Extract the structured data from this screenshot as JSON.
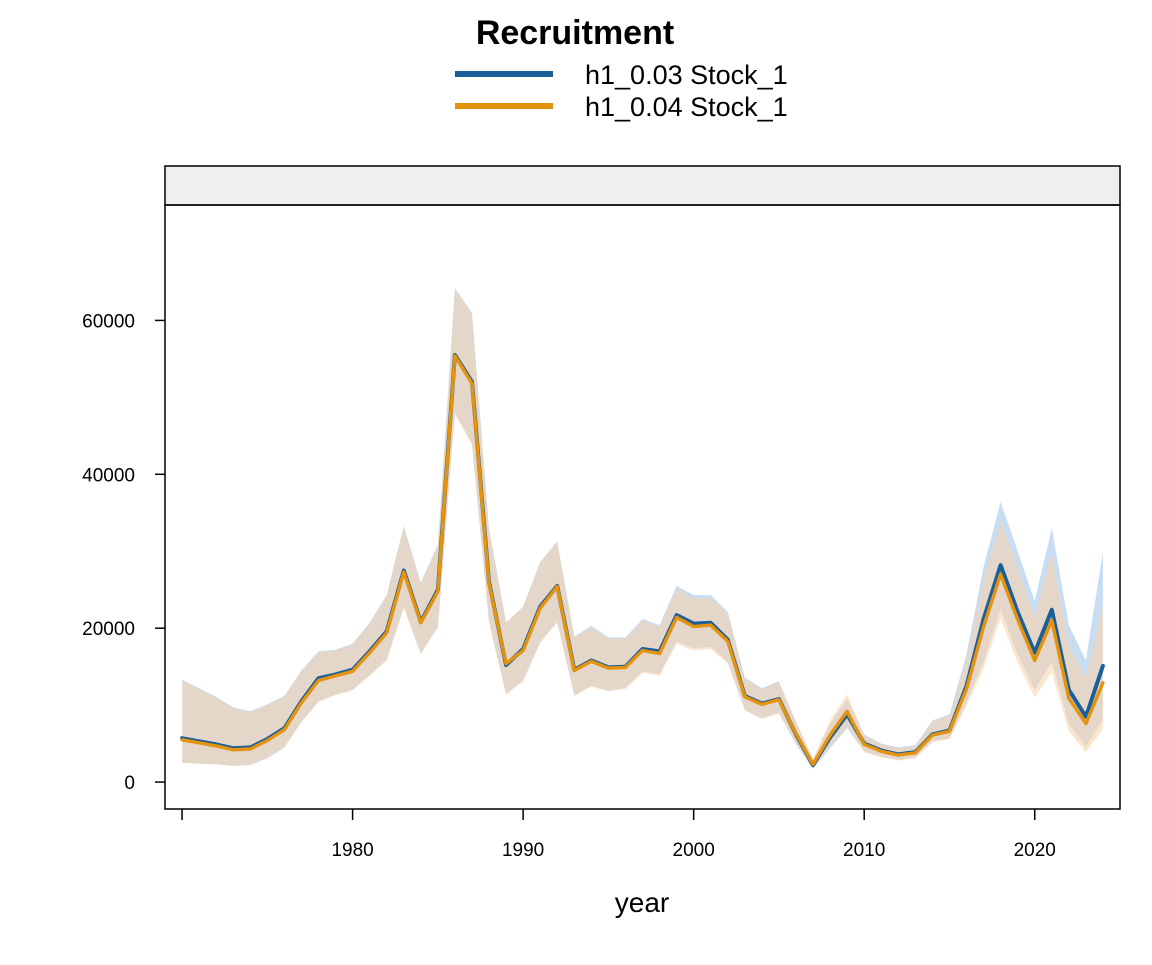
{
  "chart_data": {
    "type": "line",
    "title": "Recruitment",
    "xlabel": "year",
    "ylabel": "",
    "xlim": [
      1969,
      2025
    ],
    "ylim": [
      -3500,
      75000
    ],
    "x_ticks": [
      1980,
      1990,
      2000,
      2010,
      2020
    ],
    "y_ticks": [
      0,
      20000,
      40000,
      60000
    ],
    "x_tick_labels": [
      "1980",
      "1990",
      "2000",
      "2010",
      "2020"
    ],
    "y_tick_labels": [
      "0",
      "20000",
      "40000",
      "60000"
    ],
    "legend_position": "top-center",
    "grid": false,
    "strip_color": "#efefef",
    "x": [
      1970,
      1971,
      1972,
      1973,
      1974,
      1975,
      1976,
      1977,
      1978,
      1979,
      1980,
      1981,
      1982,
      1983,
      1984,
      1985,
      1986,
      1987,
      1988,
      1989,
      1990,
      1991,
      1992,
      1993,
      1994,
      1995,
      1996,
      1997,
      1998,
      1999,
      2000,
      2001,
      2002,
      2003,
      2004,
      2005,
      2006,
      2007,
      2008,
      2009,
      2010,
      2011,
      2012,
      2013,
      2014,
      2015,
      2016,
      2017,
      2018,
      2019,
      2020,
      2021,
      2022,
      2023,
      2024
    ],
    "series": [
      {
        "name": "h1_0.03 Stock_1",
        "color": "#1a5f9a",
        "band_color": "#bcd7f2",
        "values": [
          5700,
          5300,
          4900,
          4400,
          4500,
          5600,
          7000,
          10500,
          13500,
          14000,
          14600,
          17000,
          19600,
          27500,
          20800,
          25000,
          55500,
          52000,
          26000,
          15200,
          17300,
          22800,
          25500,
          14600,
          15800,
          14900,
          15000,
          17300,
          17000,
          21700,
          20600,
          20700,
          18500,
          11200,
          10200,
          10800,
          6200,
          2200,
          5800,
          8800,
          5000,
          4100,
          3600,
          3900,
          6200,
          6700,
          12500,
          21200,
          28200,
          22100,
          16800,
          22400,
          12000,
          8500,
          15100
        ],
        "lower": [
          2500,
          2400,
          2300,
          2100,
          2200,
          3100,
          4500,
          7800,
          10500,
          11400,
          12000,
          13900,
          15900,
          22800,
          16700,
          20200,
          48000,
          44000,
          20800,
          11400,
          13200,
          18200,
          20800,
          11300,
          12500,
          11900,
          12200,
          14400,
          14000,
          18300,
          17400,
          17600,
          15600,
          9400,
          8300,
          9000,
          4900,
          1700,
          4400,
          7000,
          4000,
          3300,
          2900,
          3200,
          5300,
          5700,
          10300,
          15600,
          22500,
          16500,
          12000,
          15600,
          7600,
          4600,
          8200
        ],
        "upper": [
          13300,
          12200,
          11100,
          9700,
          9200,
          10100,
          11200,
          14500,
          17000,
          17200,
          18000,
          20700,
          24300,
          33300,
          25900,
          30900,
          64200,
          61000,
          33000,
          20700,
          22800,
          28600,
          31300,
          18900,
          20300,
          18800,
          18800,
          21200,
          20400,
          25500,
          24300,
          24300,
          22100,
          13600,
          12200,
          13100,
          7800,
          2900,
          7600,
          10800,
          6200,
          5000,
          4500,
          4800,
          8000,
          8800,
          16600,
          28000,
          36400,
          30000,
          23500,
          33000,
          20400,
          15800,
          29900
        ]
      },
      {
        "name": "h1_0.04 Stock_1",
        "color": "#e5920d",
        "band_color": "#f8d3ad",
        "values": [
          5500,
          5100,
          4700,
          4200,
          4300,
          5400,
          6800,
          10300,
          13200,
          13800,
          14400,
          16800,
          19400,
          27300,
          20700,
          24800,
          55400,
          51800,
          25800,
          15400,
          17100,
          22600,
          25400,
          14500,
          15700,
          14800,
          14900,
          17100,
          16700,
          21400,
          20200,
          20400,
          18300,
          11100,
          10100,
          10700,
          6300,
          2300,
          6100,
          9200,
          4900,
          4000,
          3500,
          3800,
          6100,
          6600,
          12100,
          20200,
          27000,
          21100,
          15800,
          21000,
          10900,
          7600,
          12900
        ],
        "lower": [
          2500,
          2400,
          2300,
          2100,
          2200,
          3100,
          4500,
          7800,
          10400,
          11300,
          11900,
          13800,
          15800,
          22600,
          16600,
          20100,
          47800,
          43800,
          20700,
          11400,
          13100,
          18100,
          20700,
          11200,
          12400,
          11800,
          12100,
          14200,
          13800,
          18000,
          17100,
          17300,
          15400,
          9300,
          8200,
          8900,
          5000,
          1800,
          4600,
          7300,
          3900,
          3200,
          2800,
          3100,
          5200,
          5600,
          9900,
          14800,
          21300,
          15500,
          11000,
          14300,
          6600,
          3900,
          6900
        ],
        "upper": [
          13200,
          12100,
          11000,
          9600,
          9100,
          10000,
          11100,
          14400,
          16900,
          17100,
          17900,
          20600,
          24200,
          33200,
          25800,
          30800,
          64100,
          60800,
          32800,
          20800,
          22700,
          28500,
          31200,
          18800,
          20200,
          18700,
          18700,
          21000,
          20200,
          25200,
          23900,
          24000,
          21800,
          13500,
          12100,
          13000,
          7900,
          3000,
          8000,
          11400,
          6100,
          4900,
          4400,
          4700,
          7900,
          8600,
          16000,
          26200,
          34100,
          28000,
          21500,
          29800,
          17900,
          13600,
          23200
        ]
      }
    ]
  }
}
